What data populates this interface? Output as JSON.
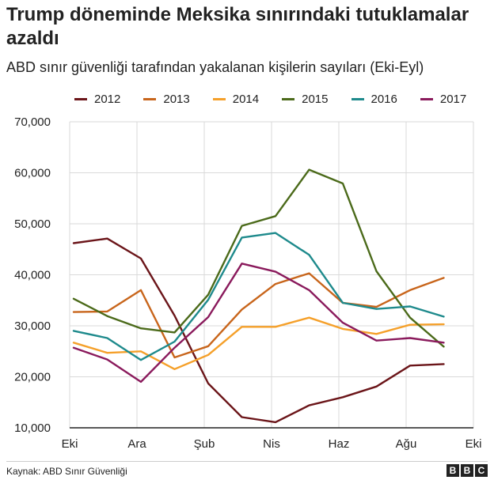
{
  "colors": {
    "2012": "#6b1519",
    "2013": "#c8651b",
    "2014": "#f5a02a",
    "2015": "#4b6a1a",
    "2016": "#1e8a8c",
    "2017": "#8a1a5c",
    "grid": "#d9d9d9",
    "axis": "#222222"
  },
  "chart_data": {
    "type": "line",
    "title": "Trump döneminde Meksika sınırındaki tutuklamalar azaldı",
    "subtitle": "ABD sınır güvenliği tarafından yakalanan kişilerin sayıları (Eki-Eyl)",
    "x_tick_labels": [
      "Eki",
      "Ara",
      "Şub",
      "Nis",
      "Haz",
      "Ağu",
      "Eki"
    ],
    "y_tick_labels": [
      "10,000",
      "20,000",
      "30,000",
      "40,000",
      "50,000",
      "60,000",
      "70,000"
    ],
    "y_ticks": [
      10000,
      20000,
      30000,
      40000,
      50000,
      60000,
      70000
    ],
    "ylim": [
      10000,
      70000
    ],
    "grid": true,
    "legend_position": "top",
    "series": [
      {
        "name": "2012",
        "values": [
          46200,
          47100,
          43200,
          32000,
          18700,
          12100,
          11100,
          14400,
          16000,
          18100,
          22200,
          22500
        ]
      },
      {
        "name": "2013",
        "values": [
          32700,
          32800,
          37000,
          23800,
          26000,
          33200,
          38200,
          40300,
          34500,
          33700,
          37000,
          39400
        ]
      },
      {
        "name": "2014",
        "values": [
          26700,
          24700,
          25000,
          21500,
          24300,
          29800,
          29800,
          31600,
          29400,
          28400,
          30200,
          30300
        ]
      },
      {
        "name": "2015",
        "values": [
          35300,
          31900,
          29500,
          28700,
          36100,
          49600,
          51500,
          60600,
          57900,
          40700,
          31600,
          25900
        ]
      },
      {
        "name": "2016",
        "values": [
          29000,
          27600,
          23300,
          26900,
          35100,
          47300,
          48200,
          43900,
          34500,
          33300,
          33800,
          31800
        ]
      },
      {
        "name": "2017",
        "values": [
          25700,
          23400,
          19000,
          25700,
          31700,
          42200,
          40600,
          37000,
          30600,
          27100,
          27600,
          26700
        ]
      }
    ]
  },
  "footer": {
    "source": "Kaynak: ABD Sınır Güvenliği",
    "logo": [
      "B",
      "B",
      "C"
    ]
  }
}
